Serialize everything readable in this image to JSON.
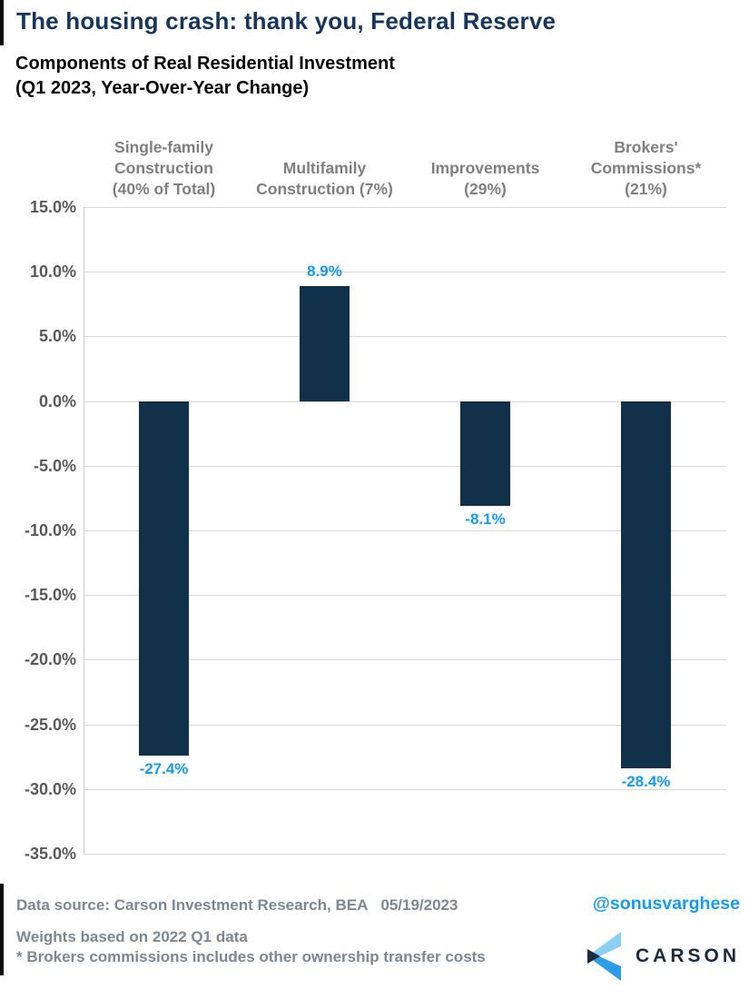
{
  "title": "The housing crash: thank you, Federal Reserve",
  "subtitle": {
    "line1": "Components of Real Residential Investment",
    "line2": "(Q1 2023, Year-Over-Year Change)"
  },
  "chart_data": {
    "type": "bar",
    "title": "Components of Real Residential Investment (Q1 2023, Year-Over-Year Change)",
    "categories": [
      "Single-family Construction (40% of Total)",
      "Multifamily Construction (7%)",
      "Improvements (29%)",
      "Brokers' Commissions* (21%)"
    ],
    "category_label_lines": [
      [
        "Single-family",
        "Construction",
        "(40% of Total)"
      ],
      [
        "Multifamily",
        "Construction (7%)"
      ],
      [
        "Improvements",
        "(29%)"
      ],
      [
        "Brokers'",
        "Commissions*",
        "(21%)"
      ]
    ],
    "values": [
      -27.4,
      8.9,
      -8.1,
      -28.4
    ],
    "value_labels": [
      "-27.4%",
      "8.9%",
      "-8.1%",
      "-28.4%"
    ],
    "xlabel": "",
    "ylabel": "",
    "ylim": [
      -35,
      15
    ],
    "y_tick_step": 5,
    "y_ticks": [
      {
        "value": 15,
        "label": "15.0%"
      },
      {
        "value": 10,
        "label": "10.0%"
      },
      {
        "value": 5,
        "label": "5.0%"
      },
      {
        "value": 0,
        "label": "0.0%"
      },
      {
        "value": -5,
        "label": "-5.0%"
      },
      {
        "value": -10,
        "label": "-10.0%"
      },
      {
        "value": -15,
        "label": "-15.0%"
      },
      {
        "value": -20,
        "label": "-20.0%"
      },
      {
        "value": -25,
        "label": "-25.0%"
      },
      {
        "value": -30,
        "label": "-30.0%"
      },
      {
        "value": -35,
        "label": "-35.0%"
      }
    ],
    "grid": true,
    "legend": false,
    "colors": {
      "bar": "#11314a",
      "value_label": "#1499f5",
      "gridline": "#d9d9d9",
      "axis_line": "#c9c9c9",
      "tick_text": "#595959",
      "category_text": "#7f7f7f"
    }
  },
  "footer": {
    "data_source": "Data source: Carson Investment Research, BEA",
    "date": "05/19/2023",
    "handle": "@sonusvarghese",
    "note1": "Weights based on 2022 Q1 data",
    "note2": "* Brokers commissions includes other ownership transfer costs",
    "logo_text": "CARSON"
  },
  "colors": {
    "title_navy": "#17365d",
    "accent_blue": "#1499f5",
    "footer_gray": "#7c8791",
    "logo_navy": "#1b2b3c",
    "logo_light_blue": "#8ccdf4",
    "logo_blue": "#2d9ce9"
  }
}
